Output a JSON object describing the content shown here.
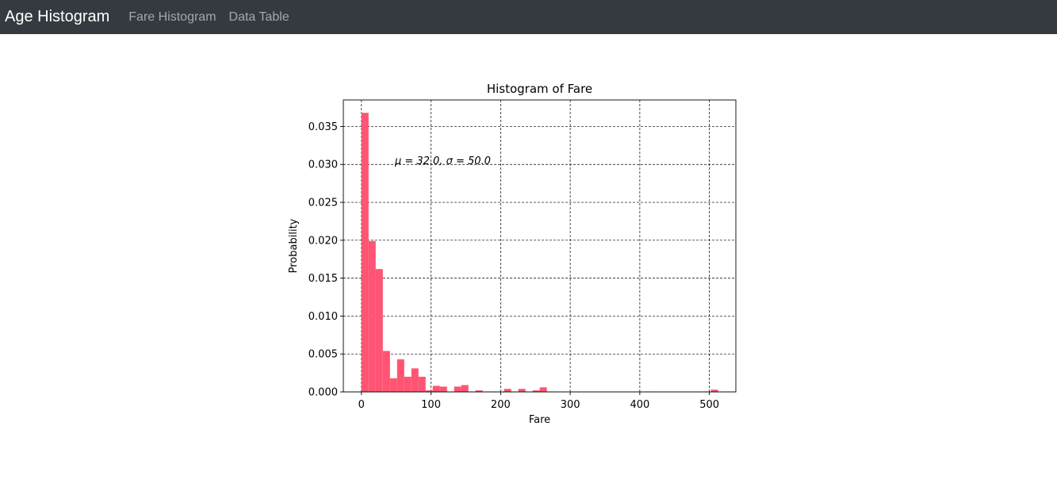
{
  "navbar": {
    "brand": "Age Histogram",
    "links": [
      "Fare Histogram",
      "Data Table"
    ],
    "background": "#343a40"
  },
  "chart_data": {
    "type": "bar",
    "title": "Histogram of Fare",
    "xlabel": "Fare",
    "ylabel": "Probability",
    "annotation": "μ = 32.0,   σ = 50.0",
    "bar_color": "#ff5473",
    "grid": true,
    "xlim": [
      -26,
      538
    ],
    "ylim": [
      0,
      0.0385
    ],
    "xticks": [
      0,
      100,
      200,
      300,
      400,
      500
    ],
    "yticks": [
      0.0,
      0.005,
      0.01,
      0.015,
      0.02,
      0.025,
      0.03,
      0.035
    ],
    "ytick_labels": [
      "0.000",
      "0.005",
      "0.010",
      "0.015",
      "0.020",
      "0.025",
      "0.030",
      "0.035"
    ],
    "bin_edges": [
      0,
      10.25,
      20.49,
      30.74,
      40.99,
      51.23,
      61.48,
      71.73,
      81.97,
      92.22,
      102.47,
      112.71,
      122.96,
      133.21,
      143.45,
      153.7,
      163.95,
      174.19,
      184.44,
      194.69,
      204.93,
      215.18,
      225.43,
      235.67,
      245.92,
      256.17,
      266.41,
      276.66,
      286.91,
      297.15,
      307.4,
      317.65,
      327.89,
      338.14,
      348.39,
      358.63,
      368.88,
      379.13,
      389.37,
      399.62,
      409.87,
      420.11,
      430.36,
      440.61,
      450.85,
      461.1,
      471.35,
      481.59,
      491.84,
      502.09,
      512.33
    ],
    "values": [
      0.0368,
      0.0199,
      0.0162,
      0.0054,
      0.0018,
      0.0043,
      0.002,
      0.0031,
      0.002,
      0.0002,
      0.0008,
      0.0007,
      0,
      0.0007,
      0.0009,
      0,
      0.0002,
      0,
      0,
      0,
      0.0004,
      0,
      0.0004,
      0,
      0.0002,
      0.0006,
      0,
      0,
      0,
      0,
      0,
      0,
      0,
      0,
      0,
      0,
      0,
      0,
      0,
      0,
      0,
      0,
      0,
      0,
      0,
      0,
      0,
      0,
      0,
      0.0003
    ]
  }
}
